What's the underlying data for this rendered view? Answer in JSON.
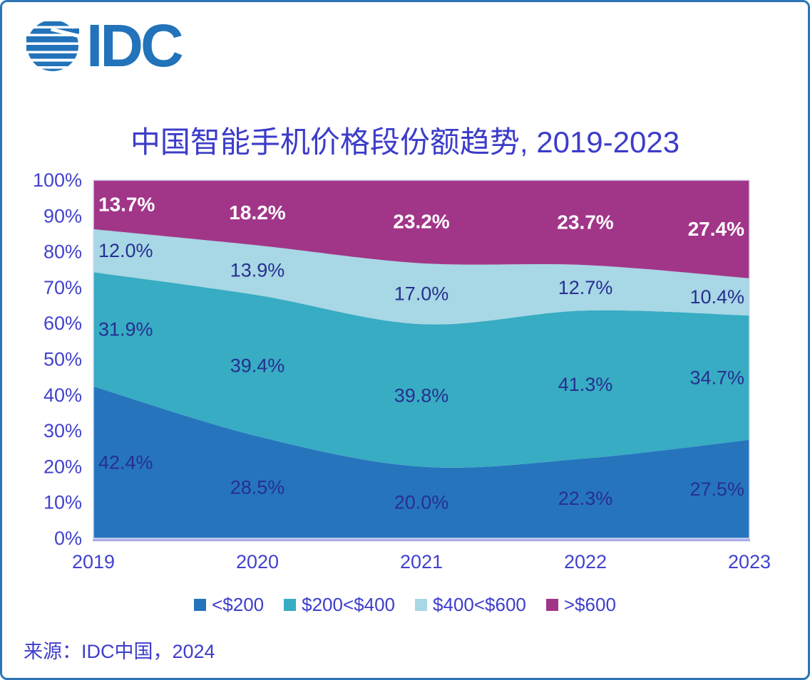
{
  "logo": {
    "text": "IDC",
    "color": "#2273B9"
  },
  "header": {
    "title": "中国智能手机价格段份额趋势, 2019-2023"
  },
  "source": {
    "text": "来源：IDC中国，2024"
  },
  "colors": {
    "frame_border": "#2E75B6",
    "title_text": "#3C3CCA",
    "axis_text": "#4242CE",
    "data_label_text": "#272F90",
    "axis_line": "#A9ADE8",
    "plot_border": "#D8D8F4"
  },
  "chart_data": {
    "type": "area",
    "stacked_percent": true,
    "title": "中国智能手机价格段份额趋势, 2019-2023",
    "x_categories": [
      "2019",
      "2020",
      "2021",
      "2022",
      "2023"
    ],
    "series": [
      {
        "name": "<$200",
        "color": "#2675BC",
        "label_color": "#272F90",
        "label_bold": false,
        "values": [
          42.4,
          28.5,
          20.0,
          22.3,
          27.5
        ]
      },
      {
        "name": "$200<$400",
        "color": "#37ACC3",
        "label_color": "#272F90",
        "label_bold": false,
        "values": [
          31.9,
          39.4,
          39.8,
          41.3,
          34.7
        ]
      },
      {
        "name": "$400<$600",
        "color": "#A8D7E5",
        "label_color": "#272F90",
        "label_bold": false,
        "values": [
          12.0,
          13.9,
          17.0,
          12.7,
          10.4
        ]
      },
      {
        "name": ">$600",
        "color": "#A13689",
        "label_color": "#FFFFFF",
        "label_bold": true,
        "values": [
          13.7,
          18.2,
          23.2,
          23.7,
          27.4
        ]
      }
    ],
    "y_axis": {
      "min": 0,
      "max": 100,
      "tick_labels": [
        "0%",
        "10%",
        "20%",
        "30%",
        "40%",
        "50%",
        "60%",
        "70%",
        "80%",
        "90%",
        "100%"
      ]
    },
    "legend_position": "bottom",
    "grid": false
  }
}
